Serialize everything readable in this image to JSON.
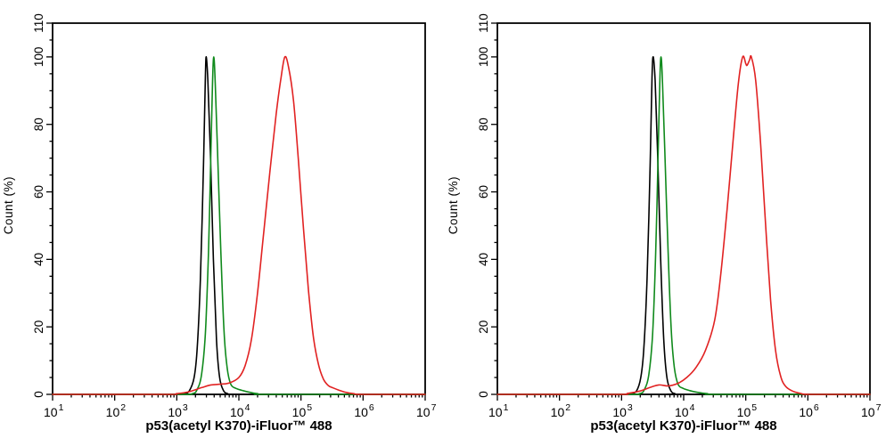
{
  "background": "#ffffff",
  "chart_data": [
    {
      "type": "line",
      "subtype": "flow-cytometry-histogram-overlay",
      "panel": "left",
      "title": "",
      "xlabel": "p53(acetyl K370)-iFluor™ 488",
      "ylabel": "Count (%)",
      "x_scale": "log10",
      "x_range_exponents": [
        1,
        7
      ],
      "x_major_tick_exponents": [
        1,
        2,
        3,
        4,
        5,
        6,
        7
      ],
      "x_tick_base": "10",
      "x_minor_mantissas": [
        2,
        3,
        4,
        5,
        6,
        7,
        8,
        9
      ],
      "y_range": [
        0,
        110
      ],
      "y_major_ticks": [
        0,
        20,
        40,
        60,
        80,
        100,
        110
      ],
      "y_minor_step": 5,
      "grid": false,
      "legend": "none",
      "tick_direction": "out",
      "series": [
        {
          "name": "black-curve",
          "color": "#000000",
          "peak_x": 3000,
          "peak_y": 100,
          "points_log10x_percent": [
            [
              1,
              0
            ],
            [
              2.6,
              0
            ],
            [
              3.0,
              0
            ],
            [
              3.12,
              0.2
            ],
            [
              3.2,
              1
            ],
            [
              3.28,
              5
            ],
            [
              3.33,
              14
            ],
            [
              3.38,
              34
            ],
            [
              3.43,
              68
            ],
            [
              3.46,
              94
            ],
            [
              3.475,
              100
            ],
            [
              3.5,
              93
            ],
            [
              3.54,
              72
            ],
            [
              3.59,
              40
            ],
            [
              3.64,
              16
            ],
            [
              3.69,
              5
            ],
            [
              3.75,
              1.2
            ],
            [
              3.82,
              0.2
            ],
            [
              3.95,
              0
            ],
            [
              5,
              0
            ],
            [
              7,
              0
            ]
          ]
        },
        {
          "name": "green-curve",
          "color": "#108a1c",
          "peak_x": 3900,
          "peak_y": 100,
          "points_log10x_percent": [
            [
              1,
              0
            ],
            [
              3.0,
              0
            ],
            [
              3.25,
              0.2
            ],
            [
              3.33,
              1.5
            ],
            [
              3.4,
              6
            ],
            [
              3.46,
              18
            ],
            [
              3.51,
              42
            ],
            [
              3.55,
              72
            ],
            [
              3.575,
              92
            ],
            [
              3.595,
              100
            ],
            [
              3.62,
              92
            ],
            [
              3.66,
              70
            ],
            [
              3.71,
              42
            ],
            [
              3.76,
              19
            ],
            [
              3.81,
              8
            ],
            [
              3.87,
              3
            ],
            [
              3.95,
              1.8
            ],
            [
              4.05,
              1.2
            ],
            [
              4.15,
              0.7
            ],
            [
              4.3,
              0.2
            ],
            [
              4.5,
              0
            ],
            [
              7,
              0
            ]
          ]
        },
        {
          "name": "red-curve",
          "color": "#e12222",
          "peak_x": 55000,
          "peak_y": 100,
          "points_log10x_percent": [
            [
              1,
              0
            ],
            [
              2.8,
              0
            ],
            [
              3.0,
              0.2
            ],
            [
              3.2,
              0.8
            ],
            [
              3.4,
              2
            ],
            [
              3.55,
              2.8
            ],
            [
              3.7,
              3
            ],
            [
              3.85,
              3.4
            ],
            [
              4.0,
              5
            ],
            [
              4.1,
              8.5
            ],
            [
              4.2,
              16
            ],
            [
              4.3,
              30
            ],
            [
              4.4,
              48
            ],
            [
              4.5,
              66
            ],
            [
              4.6,
              83
            ],
            [
              4.68,
              94
            ],
            [
              4.74,
              100
            ],
            [
              4.8,
              97
            ],
            [
              4.88,
              87
            ],
            [
              4.96,
              69
            ],
            [
              5.04,
              49
            ],
            [
              5.12,
              31
            ],
            [
              5.2,
              17
            ],
            [
              5.28,
              9
            ],
            [
              5.36,
              4.6
            ],
            [
              5.44,
              2.6
            ],
            [
              5.52,
              1.9
            ],
            [
              5.62,
              1.2
            ],
            [
              5.72,
              0.6
            ],
            [
              5.85,
              0.2
            ],
            [
              6.0,
              0
            ],
            [
              7,
              0
            ]
          ]
        }
      ]
    },
    {
      "type": "line",
      "subtype": "flow-cytometry-histogram-overlay",
      "panel": "right",
      "title": "",
      "xlabel": "p53(acetyl K370)-iFluor™ 488",
      "ylabel": "Count (%)",
      "x_scale": "log10",
      "x_range_exponents": [
        1,
        7
      ],
      "x_major_tick_exponents": [
        1,
        2,
        3,
        4,
        5,
        6,
        7
      ],
      "x_tick_base": "10",
      "x_minor_mantissas": [
        2,
        3,
        4,
        5,
        6,
        7,
        8,
        9
      ],
      "y_range": [
        0,
        110
      ],
      "y_major_ticks": [
        0,
        20,
        40,
        60,
        80,
        100,
        110
      ],
      "y_minor_step": 5,
      "grid": false,
      "legend": "none",
      "tick_direction": "out",
      "series": [
        {
          "name": "black-curve",
          "color": "#000000",
          "peak_x": 3200,
          "peak_y": 100,
          "points_log10x_percent": [
            [
              1,
              0
            ],
            [
              2.6,
              0
            ],
            [
              3.05,
              0
            ],
            [
              3.15,
              0.2
            ],
            [
              3.24,
              1
            ],
            [
              3.31,
              5
            ],
            [
              3.36,
              14
            ],
            [
              3.41,
              34
            ],
            [
              3.46,
              68
            ],
            [
              3.49,
              94
            ],
            [
              3.51,
              100
            ],
            [
              3.54,
              93
            ],
            [
              3.58,
              72
            ],
            [
              3.63,
              40
            ],
            [
              3.68,
              16
            ],
            [
              3.73,
              5
            ],
            [
              3.79,
              1.2
            ],
            [
              3.86,
              0.2
            ],
            [
              4.0,
              0
            ],
            [
              7,
              0
            ]
          ]
        },
        {
          "name": "green-curve",
          "color": "#108a1c",
          "peak_x": 4200,
          "peak_y": 100,
          "points_log10x_percent": [
            [
              1,
              0
            ],
            [
              3.05,
              0
            ],
            [
              3.29,
              0.2
            ],
            [
              3.37,
              1.5
            ],
            [
              3.44,
              6
            ],
            [
              3.5,
              18
            ],
            [
              3.55,
              42
            ],
            [
              3.59,
              72
            ],
            [
              3.615,
              92
            ],
            [
              3.635,
              100
            ],
            [
              3.66,
              92
            ],
            [
              3.7,
              70
            ],
            [
              3.75,
              42
            ],
            [
              3.8,
              19
            ],
            [
              3.85,
              8
            ],
            [
              3.91,
              3
            ],
            [
              3.99,
              1.8
            ],
            [
              4.1,
              1.1
            ],
            [
              4.22,
              0.6
            ],
            [
              4.38,
              0.2
            ],
            [
              4.6,
              0
            ],
            [
              7,
              0
            ]
          ]
        },
        {
          "name": "red-curve",
          "color": "#e12222",
          "peak_x": 100000,
          "peak_y": 100,
          "double_top_x": [
            89000,
            123000
          ],
          "points_log10x_percent": [
            [
              1,
              0
            ],
            [
              2.9,
              0
            ],
            [
              3.1,
              0.3
            ],
            [
              3.3,
              1
            ],
            [
              3.45,
              2
            ],
            [
              3.6,
              2.8
            ],
            [
              3.75,
              2.5
            ],
            [
              3.9,
              3.2
            ],
            [
              4.05,
              5
            ],
            [
              4.2,
              8
            ],
            [
              4.35,
              13
            ],
            [
              4.5,
              22
            ],
            [
              4.6,
              36
            ],
            [
              4.7,
              55
            ],
            [
              4.8,
              76
            ],
            [
              4.88,
              92
            ],
            [
              4.95,
              100
            ],
            [
              5.0,
              98
            ],
            [
              5.02,
              97.5
            ],
            [
              5.06,
              99
            ],
            [
              5.09,
              100
            ],
            [
              5.16,
              93
            ],
            [
              5.24,
              74
            ],
            [
              5.32,
              50
            ],
            [
              5.4,
              28
            ],
            [
              5.48,
              13
            ],
            [
              5.56,
              5.5
            ],
            [
              5.64,
              2.4
            ],
            [
              5.75,
              1
            ],
            [
              5.88,
              0.3
            ],
            [
              6.05,
              0
            ],
            [
              7,
              0
            ]
          ]
        }
      ]
    }
  ]
}
